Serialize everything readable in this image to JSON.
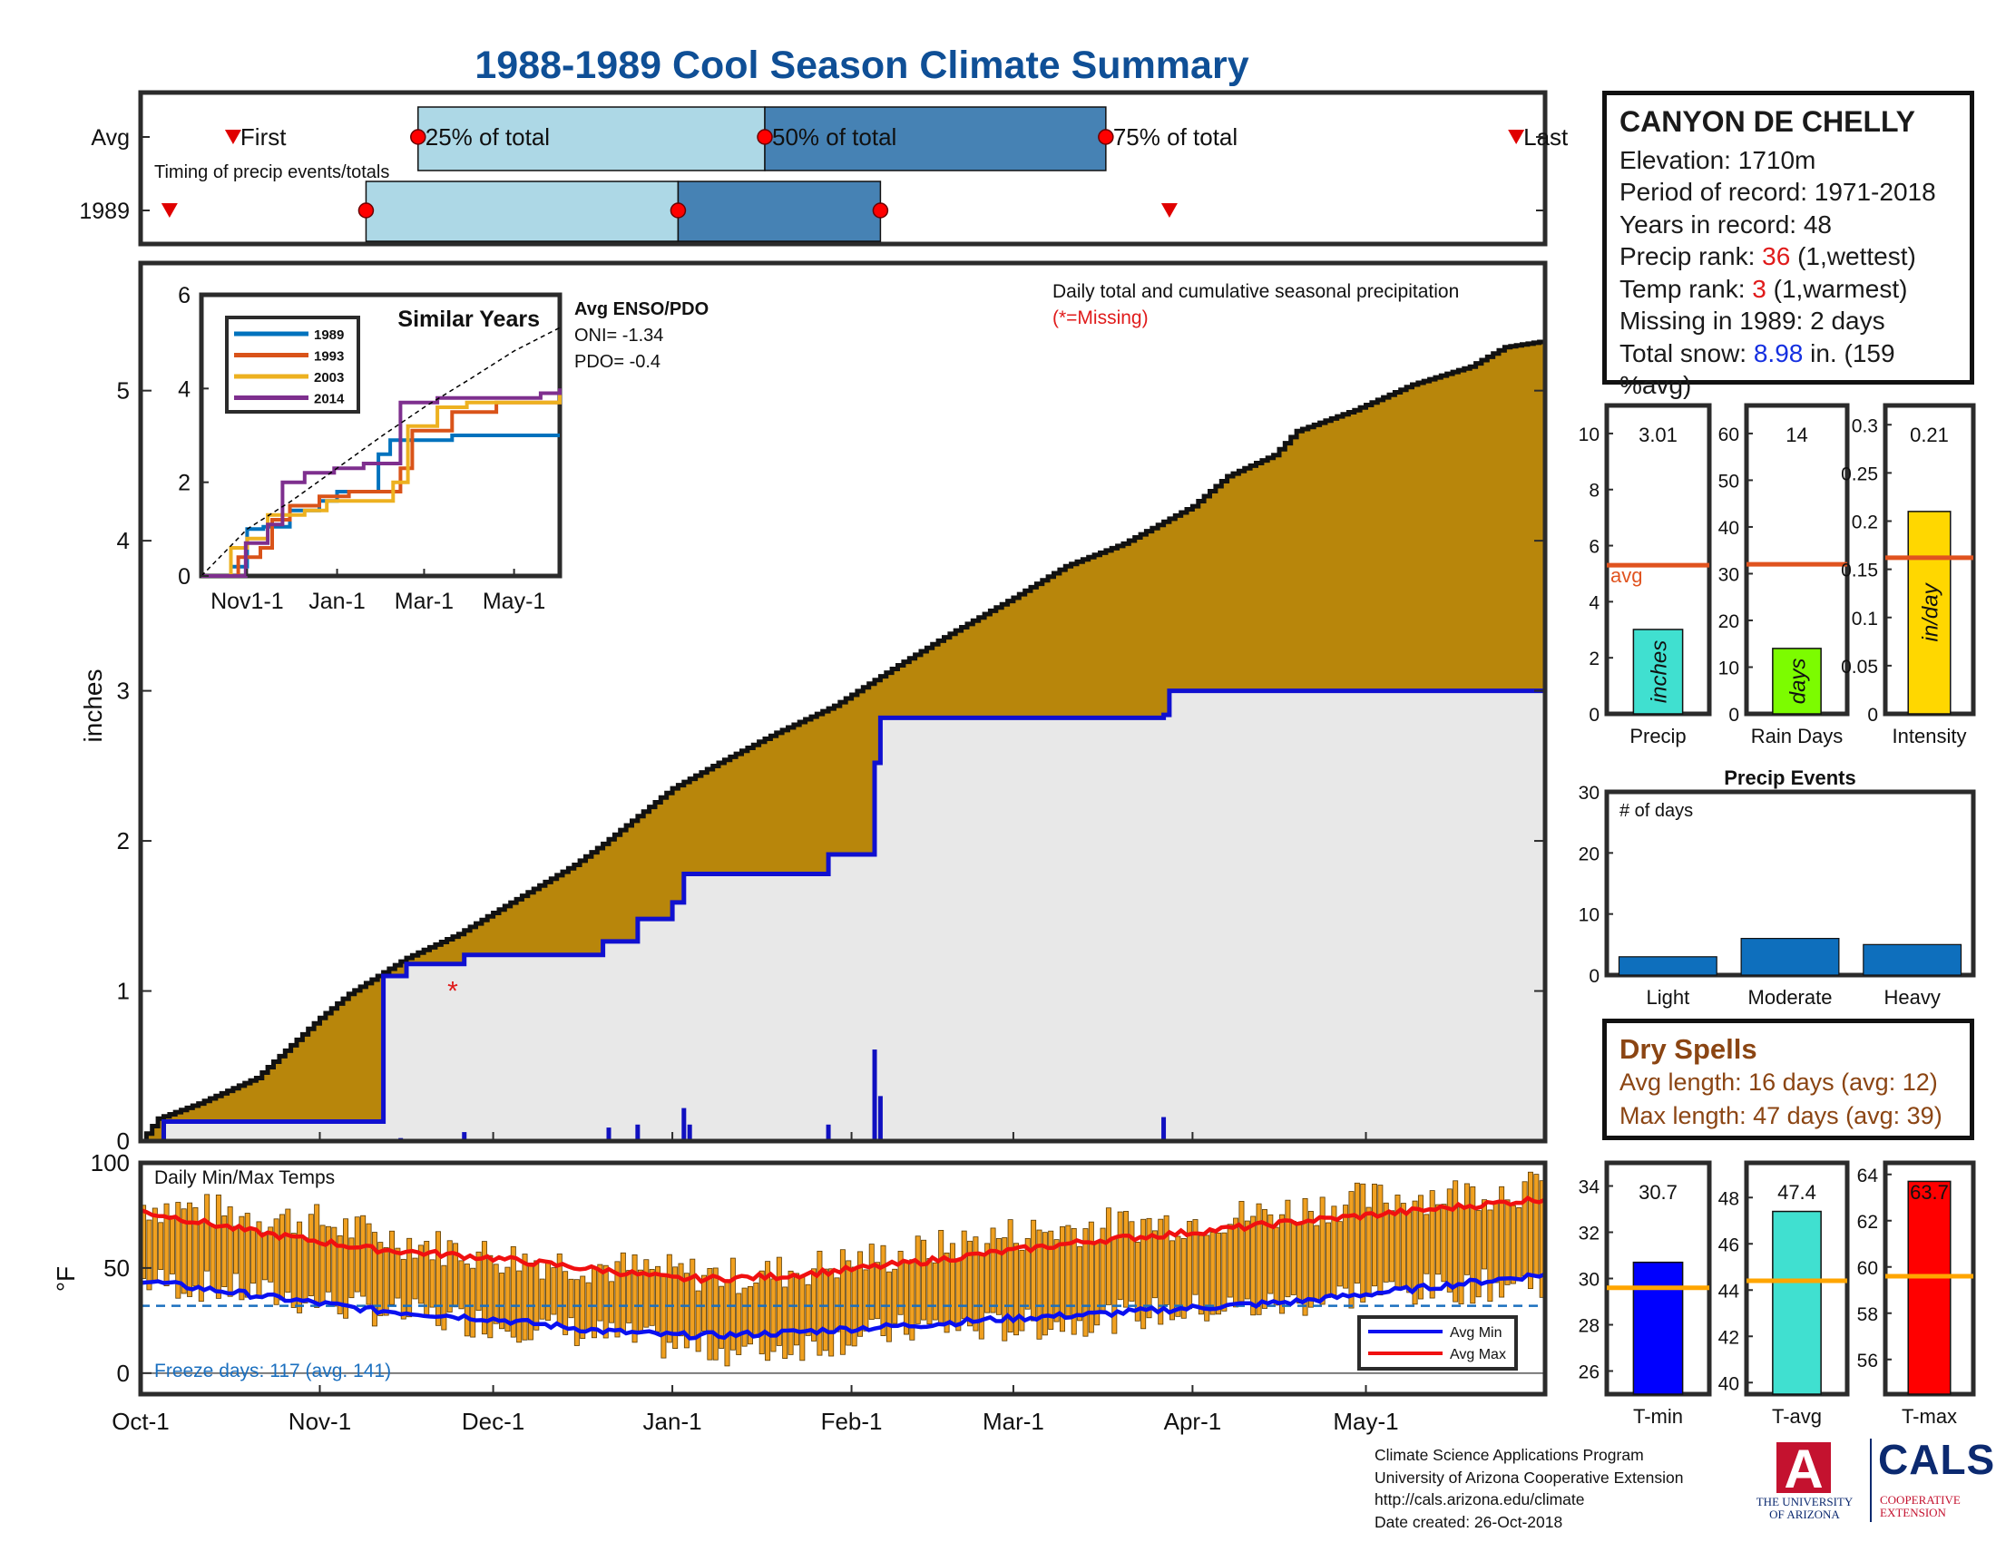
{
  "title": "1988-1989 Cool Season Climate Summary",
  "station": {
    "name": "CANYON DE CHELLY",
    "elevation_label": "Elevation: 1710m",
    "period_label": "Period of record: 1971-2018",
    "years_label": "Years in record: 48",
    "precip_rank_prefix": "Precip rank: ",
    "precip_rank": "36",
    "precip_rank_suffix": " (1,wettest)",
    "temp_rank_prefix": "Temp rank: ",
    "temp_rank": "3",
    "temp_rank_suffix": " (1,warmest)",
    "missing_label": "Missing in 1989: 2 days",
    "snow_prefix": "Total snow: ",
    "snow_value": "8.98",
    "snow_suffix": " in. (159 %avg)"
  },
  "dry_spells": {
    "title": "Dry Spells",
    "avg_label": "Avg length: 16 days (avg: 12)",
    "max_label": "Max length: 47 days (avg: 39)"
  },
  "credits": {
    "line1": "Climate Science Applications Program",
    "line2": "University of Arizona Cooperative Extension",
    "line3": "http://cals.arizona.edu/climate",
    "line4": " Date created: 26-Oct-2018"
  },
  "logos": {
    "ua_line1": "THE UNIVERSITY",
    "ua_line2": "OF ARIZONA",
    "ua_letter": "A",
    "cals": "CALS",
    "coop_line1": "COOPERATIVE",
    "coop_line2": "EXTENSION"
  },
  "colors": {
    "avg_fill": "#b8860b",
    "obs_fill": "#e8e8e8",
    "obs_line": "#1010d0",
    "outline": "#111111",
    "avg_bar_light": "#add8e6",
    "avg_bar_dark": "#4682b4",
    "temp_bar": "#f0a020",
    "avg_min_line": "#0a10f0",
    "avg_max_line": "#f01010",
    "freeze_line": "#1a6fbf",
    "avg_ref_line": "#e0531f",
    "temp_ref_line": "#ffa500"
  },
  "chart_data": [
    {
      "id": "timing",
      "type": "bar",
      "title": "Timing of precip events/totals",
      "rows": [
        {
          "label": "Avg",
          "first": "Oct-17",
          "p25": "Nov-18",
          "p50": "Jan-17",
          "p75": "Mar-17",
          "last": "May-27"
        },
        {
          "label": "1989",
          "first": "Oct-6",
          "p25": "Nov-9",
          "p50": "Jan-2",
          "p75": "Feb-6",
          "last": "Mar-28"
        }
      ],
      "marker_labels": {
        "first": "First",
        "p25": "25% of total",
        "p50": "50% of total",
        "p75": "75% of total",
        "last": "Last"
      }
    },
    {
      "id": "precip",
      "type": "area",
      "title": "Daily total and cumulative seasonal precipitation",
      "missing_note": "(*=Missing)",
      "ylabel": "inches",
      "ylim": [
        0,
        5.85
      ],
      "yticks": [
        0,
        1,
        2,
        3,
        4,
        5
      ],
      "xticks": [
        "Oct-1",
        "Nov-1",
        "Dec-1",
        "Jan-1",
        "Feb-1",
        "Mar-1",
        "Apr-1",
        "May-1"
      ],
      "xtick_days": [
        0,
        31,
        61,
        92,
        123,
        151,
        182,
        212
      ],
      "season_days": 243,
      "avg_cumulative": {
        "day": [
          0,
          3,
          10,
          20,
          31,
          36,
          41,
          46,
          55,
          61,
          75,
          80,
          92,
          100,
          110,
          120,
          131,
          140,
          151,
          160,
          170,
          182,
          188,
          196,
          200,
          210,
          220,
          230,
          236,
          243
        ],
        "value": [
          0,
          0.15,
          0.25,
          0.42,
          0.82,
          0.98,
          1.1,
          1.22,
          1.38,
          1.52,
          1.84,
          1.98,
          2.35,
          2.52,
          2.72,
          2.9,
          3.17,
          3.38,
          3.62,
          3.83,
          3.98,
          4.23,
          4.43,
          4.57,
          4.73,
          4.87,
          5.04,
          5.16,
          5.29,
          5.33
        ]
      },
      "obs_cumulative": {
        "day": [
          0,
          4,
          41,
          42,
          46,
          56,
          80,
          86,
          92,
          94,
          119,
          127,
          128,
          177,
          178,
          243
        ],
        "value": [
          0,
          0.13,
          0.13,
          1.1,
          1.18,
          1.24,
          1.33,
          1.48,
          1.59,
          1.78,
          1.91,
          2.52,
          2.82,
          2.84,
          3.0,
          3.0
        ]
      },
      "daily_obs": {
        "day": [
          4,
          45,
          56,
          81,
          86,
          94,
          95,
          119,
          127,
          128,
          177
        ],
        "value": [
          0.13,
          0.02,
          0.06,
          0.09,
          0.11,
          0.22,
          0.11,
          0.11,
          0.61,
          0.3,
          0.16
        ]
      },
      "missing_days": [
        {
          "day": 54,
          "value": 1.0
        }
      ]
    },
    {
      "id": "similar_years",
      "type": "line",
      "title": "Similar Years",
      "ylim": [
        0,
        6
      ],
      "yticks": [
        0,
        2,
        4,
        6
      ],
      "xticks": [
        "Nov1-1",
        "Jan-1",
        "Mar-1",
        "May-1"
      ],
      "xtick_days": [
        31,
        92,
        151,
        212
      ],
      "enso_title": "Avg ENSO/PDO",
      "oni": "ONI= -1.34",
      "pdo": "PDO= -0.4",
      "series": [
        {
          "name": "1989",
          "color": "#0072bd",
          "day": [
            0,
            20,
            31,
            42,
            60,
            80,
            92,
            120,
            128,
            160,
            170,
            243
          ],
          "value": [
            0,
            0.2,
            1.0,
            1.05,
            1.4,
            1.6,
            1.8,
            2.6,
            2.9,
            2.9,
            3.0,
            3.0
          ]
        },
        {
          "name": "1993",
          "color": "#d95319",
          "day": [
            0,
            25,
            40,
            48,
            60,
            80,
            100,
            135,
            143,
            170,
            200,
            243
          ],
          "value": [
            0,
            0.4,
            0.6,
            1.2,
            1.5,
            1.7,
            1.8,
            2.3,
            3.1,
            3.5,
            3.7,
            3.9
          ]
        },
        {
          "name": "2003",
          "color": "#edb120",
          "day": [
            0,
            20,
            31,
            45,
            70,
            85,
            130,
            140,
            160,
            180,
            243
          ],
          "value": [
            0,
            0.6,
            0.8,
            1.3,
            1.4,
            1.6,
            2.0,
            3.2,
            3.6,
            3.7,
            3.9
          ]
        },
        {
          "name": "2014",
          "color": "#7e2f8e",
          "day": [
            0,
            30,
            45,
            55,
            70,
            90,
            110,
            135,
            160,
            190,
            230,
            243
          ],
          "value": [
            0,
            0.7,
            1.1,
            2.0,
            2.2,
            2.3,
            2.4,
            3.7,
            3.8,
            3.8,
            3.9,
            4.0
          ]
        },
        {
          "name": "avg",
          "color": "#000000",
          "day": [
            0,
            31,
            61,
            92,
            123,
            151,
            182,
            212,
            243
          ],
          "value": [
            0,
            1.0,
            1.6,
            2.3,
            3.0,
            3.6,
            4.2,
            4.8,
            5.3
          ]
        }
      ]
    },
    {
      "id": "precip_stats",
      "type": "bar",
      "panels": [
        {
          "name": "Precip",
          "value": 3.01,
          "value_label": "3.01",
          "avg": 5.3,
          "unit": "inches",
          "color": "#40e0d0",
          "ylim": [
            0,
            11
          ],
          "yticks": [
            0,
            2,
            4,
            6,
            8,
            10
          ],
          "avg_label": "avg"
        },
        {
          "name": "Rain Days",
          "value": 14,
          "value_label": "14",
          "avg": 32,
          "unit": "days",
          "color": "#7cfc00",
          "ylim": [
            0,
            66
          ],
          "yticks": [
            0,
            10,
            20,
            30,
            40,
            50,
            60
          ]
        },
        {
          "name": "Intensity",
          "value": 0.21,
          "value_label": "0.21",
          "avg": 0.162,
          "unit": "in/day",
          "color": "#ffd700",
          "ylim": [
            0,
            0.32
          ],
          "yticks": [
            0,
            0.05,
            0.1,
            0.15,
            0.2,
            0.25,
            0.3
          ],
          "ytick_labels": [
            "0",
            "0.05",
            "0.1",
            "0.15",
            "0.2",
            "0.25",
            "0.3"
          ]
        }
      ]
    },
    {
      "id": "precip_events",
      "type": "bar",
      "title": "Precip Events",
      "annotation": "# of days",
      "categories": [
        "Light",
        "Moderate",
        "Heavy"
      ],
      "values": [
        3,
        6,
        5
      ],
      "ylim": [
        0,
        30
      ],
      "yticks": [
        0,
        10,
        20,
        30
      ]
    },
    {
      "id": "temps",
      "type": "bar",
      "title": "Daily Min/Max Temps",
      "ylabel": "°F",
      "ylim": [
        -10,
        100
      ],
      "yticks": [
        0,
        50,
        100
      ],
      "freeze_line": 32,
      "freeze_label": "Freeze days: 117 (avg. 141)",
      "legend": [
        "Avg Min",
        "Avg Max"
      ],
      "avg_min": {
        "day": [
          0,
          20,
          40,
          60,
          80,
          92,
          100,
          110,
          122,
          135,
          150,
          165,
          182,
          200,
          220,
          243
        ],
        "value": [
          44,
          37,
          30,
          26,
          20,
          18,
          18,
          19,
          21,
          23,
          26,
          28,
          31,
          34,
          40,
          47
        ]
      },
      "avg_max": {
        "day": [
          0,
          20,
          40,
          60,
          80,
          92,
          100,
          110,
          122,
          135,
          150,
          165,
          182,
          200,
          220,
          243
        ],
        "value": [
          77,
          67,
          59,
          55,
          49,
          45,
          45,
          46,
          49,
          53,
          58,
          63,
          67,
          72,
          77,
          83
        ]
      },
      "daily_max_anchor": {
        "day": [
          0,
          15,
          30,
          45,
          60,
          75,
          90,
          105,
          120,
          135,
          150,
          165,
          180,
          195,
          210,
          225,
          243
        ],
        "value": [
          80,
          76,
          72,
          63,
          56,
          52,
          48,
          46,
          52,
          58,
          66,
          70,
          72,
          76,
          82,
          85,
          88
        ]
      },
      "daily_min_anchor": {
        "day": [
          0,
          15,
          30,
          45,
          60,
          75,
          90,
          105,
          120,
          135,
          150,
          165,
          180,
          195,
          210,
          225,
          243
        ],
        "value": [
          44,
          40,
          34,
          28,
          24,
          20,
          14,
          10,
          16,
          22,
          22,
          26,
          30,
          32,
          38,
          40,
          44
        ]
      }
    },
    {
      "id": "temp_stats",
      "type": "bar",
      "panels": [
        {
          "name": "T-min",
          "value": 30.7,
          "value_label": "30.7",
          "avg": 29.6,
          "color": "#0000ff",
          "ylim": [
            25,
            35
          ],
          "yticks": [
            26,
            28,
            30,
            32,
            34
          ]
        },
        {
          "name": "T-avg",
          "value": 47.4,
          "value_label": "47.4",
          "avg": 44.4,
          "color": "#40e0d0",
          "ylim": [
            39.5,
            49.5
          ],
          "yticks": [
            40,
            42,
            44,
            46,
            48
          ]
        },
        {
          "name": "T-max",
          "value": 63.7,
          "value_label": "63.7",
          "avg": 59.6,
          "color": "#ff0000",
          "ylim": [
            54.5,
            64.5
          ],
          "yticks": [
            56,
            58,
            60,
            62,
            64
          ]
        }
      ]
    }
  ]
}
